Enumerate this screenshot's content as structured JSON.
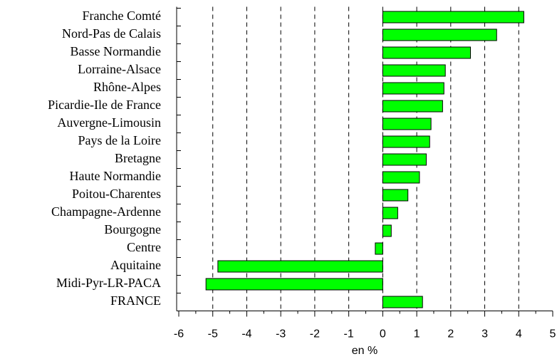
{
  "chart_data": {
    "type": "barh",
    "categories": [
      "Franche Comté",
      "Nord-Pas de Calais",
      "Basse Normandie",
      "Lorraine-Alsace",
      "Rhône-Alpes",
      "Picardie-Ile de France",
      "Auvergne-Limousin",
      "Pays de la Loire",
      "Bretagne",
      "Haute Normandie",
      "Poitou-Charentes",
      "Champagne-Ardenne",
      "Bourgogne",
      "Centre",
      "Aquitaine",
      "Midi-Pyr-LR-PACA",
      "FRANCE"
    ],
    "values": [
      4.15,
      3.35,
      2.58,
      1.84,
      1.8,
      1.76,
      1.42,
      1.38,
      1.28,
      1.08,
      0.74,
      0.44,
      0.25,
      -0.22,
      -4.85,
      -5.2,
      1.17
    ],
    "color": "#00ff00",
    "xlabel": "en %",
    "xlim": [
      -6,
      5
    ],
    "xticks": [
      -6,
      -5,
      -4,
      -3,
      -2,
      -1,
      0,
      1,
      2,
      3,
      4,
      5
    ],
    "grid": true
  }
}
